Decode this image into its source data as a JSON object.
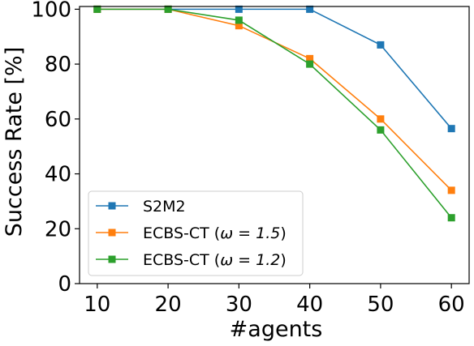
{
  "chart_data": {
    "type": "line",
    "title": "",
    "xlabel": "#agents",
    "ylabel": "Success Rate [%]",
    "x": [
      10,
      20,
      30,
      40,
      50,
      60
    ],
    "xticks": [
      10,
      20,
      30,
      40,
      50,
      60
    ],
    "xtick_labels": [
      "10",
      "20",
      "30",
      "40",
      "50",
      "60"
    ],
    "yticks": [
      0,
      20,
      40,
      60,
      80,
      100
    ],
    "ytick_labels": [
      "0",
      "20",
      "40",
      "60",
      "80",
      "100"
    ],
    "xlim": [
      7.5,
      62.5
    ],
    "ylim": [
      0,
      101
    ],
    "grid": false,
    "legend_position": "lower-left",
    "marker": "square",
    "series": [
      {
        "name": "S2M2",
        "color": "#1f77b4",
        "values": [
          100,
          100,
          100,
          100,
          87,
          56.5
        ]
      },
      {
        "name_prefix": "ECBS-CT (",
        "name_math": "ω = 1.5",
        "name_suffix": ")",
        "color": "#ff7f0e",
        "values": [
          100,
          100,
          94,
          82,
          60,
          34
        ]
      },
      {
        "name_prefix": "ECBS-CT (",
        "name_math": "ω = 1.2",
        "name_suffix": ")",
        "color": "#2ca02c",
        "values": [
          100,
          100,
          96,
          80,
          56,
          24
        ]
      }
    ]
  }
}
